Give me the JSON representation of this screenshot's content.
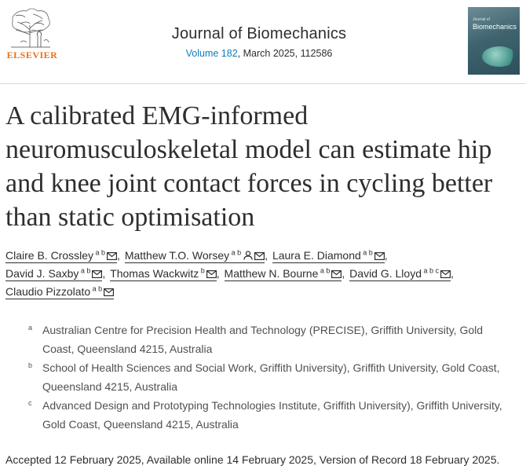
{
  "header": {
    "publisher": "ELSEVIER",
    "journal_name": "Journal of Biomechanics",
    "volume": "Volume 182",
    "issue_rest": ", March 2025, 112586",
    "cover_journal_small": "Journal of",
    "cover_journal": "Biomechanics"
  },
  "article": {
    "title": "A calibrated EMG-informed neuromusculoskeletal model can estimate hip and knee joint contact forces in cycling better than static optimisation"
  },
  "authors": [
    {
      "name": "Claire B. Crossley",
      "sup": "a b",
      "mail": true
    },
    {
      "name": "Matthew T.O. Worsey",
      "sup": "a b",
      "person": true,
      "mail": true
    },
    {
      "name": "Laura E. Diamond",
      "sup": "a b",
      "mail": true
    },
    {
      "name": "David J. Saxby",
      "sup": "a b",
      "mail": true
    },
    {
      "name": "Thomas Wackwitz",
      "sup": "b",
      "mail": true
    },
    {
      "name": "Matthew N. Bourne",
      "sup": "a b",
      "mail": true
    },
    {
      "name": "David G. Lloyd",
      "sup": "a b c",
      "mail": true
    },
    {
      "name": "Claudio Pizzolato",
      "sup": "a b",
      "mail": true
    }
  ],
  "affiliations": [
    {
      "label": "a",
      "text": "Australian Centre for Precision Health and Technology (PRECISE), Griffith University, Gold Coast, Queensland 4215, Australia"
    },
    {
      "label": "b",
      "text": "School of Health Sciences and Social Work, Griffith University), Griffith University, Gold Coast, Queensland 4215, Australia"
    },
    {
      "label": "c",
      "text": "Advanced Design and Prototyping Technologies Institute, Griffith University), Griffith University, Gold Coast, Queensland 4215, Australia"
    }
  ],
  "dates": "Accepted 12 February 2025, Available online 14 February 2025, Version of Record 18 February 2025.",
  "icons": {
    "mail": "envelope-icon",
    "person": "person-icon"
  },
  "colors": {
    "publisher_orange": "#e9711c",
    "link_blue": "#0c7dbb"
  }
}
